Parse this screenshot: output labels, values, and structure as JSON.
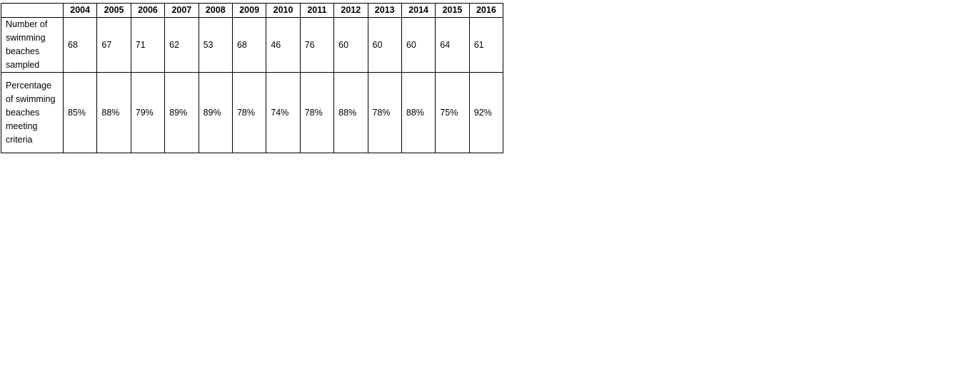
{
  "table": {
    "years": [
      "2004",
      "2005",
      "2006",
      "2007",
      "2008",
      "2009",
      "2010",
      "2011",
      "2012",
      "2013",
      "2014",
      "2015",
      "2016"
    ],
    "rows": [
      {
        "label": "Number of swimming beaches sampled",
        "values": [
          "68",
          "67",
          "71",
          "62",
          "53",
          "68",
          "46",
          "76",
          "60",
          "60",
          "60",
          "64",
          "61"
        ]
      },
      {
        "label": "Percentage of swimming beaches meeting criteria",
        "values": [
          "85%",
          "88%",
          "79%",
          "89%",
          "89%",
          "78%",
          "74%",
          "78%",
          "88%",
          "78%",
          "88%",
          "75%",
          "92%"
        ]
      }
    ]
  }
}
